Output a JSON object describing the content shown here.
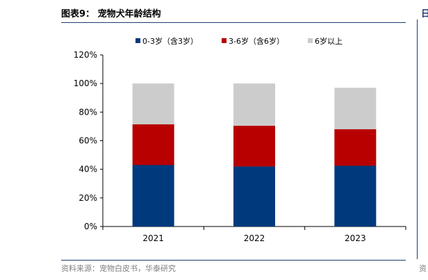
{
  "figure": {
    "label": "图表9：",
    "title": "宠物犬年龄结构",
    "source": "资料来源：宠物白皮书，华泰研究",
    "edge_char": "日",
    "edge_foot": "资"
  },
  "chart_data": {
    "type": "bar",
    "stacked": true,
    "categories": [
      "2021",
      "2022",
      "2023"
    ],
    "series": [
      {
        "name": "0-3岁（含3岁）",
        "color": "#003a7c",
        "values": [
          43,
          42,
          42.5
        ]
      },
      {
        "name": "3-6岁（含6岁）",
        "color": "#b80000",
        "values": [
          28.5,
          28.5,
          25.5
        ]
      },
      {
        "name": "6岁以上",
        "color": "#cccccc",
        "values": [
          28.5,
          29.5,
          29
        ]
      }
    ],
    "ylim": [
      0,
      120
    ],
    "yticks": [
      "0%",
      "20%",
      "40%",
      "60%",
      "80%",
      "100%",
      "120%"
    ],
    "legend_position": "top",
    "grid": false
  }
}
